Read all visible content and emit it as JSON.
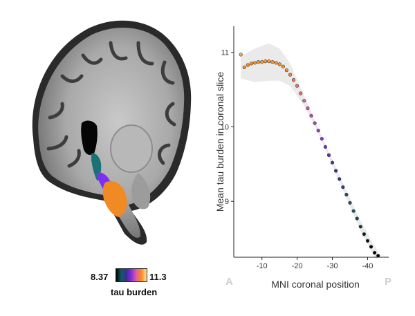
{
  "colorbar": {
    "min_label": "8.37",
    "max_label": "11.3",
    "title": "tau burden",
    "colors": [
      "#000000",
      "#0e5e63",
      "#3a2e8f",
      "#8a2be2",
      "#e0609a",
      "#ff8c1a",
      "#ffe3a6"
    ]
  },
  "brain_overlay_colors": {
    "teal": "#1b7276",
    "purple": "#7b2ff0",
    "orange": "#f08a24"
  },
  "chart_data": {
    "type": "scatter",
    "xlabel": "MNI coronal position",
    "ylabel": "Mean tau burden in coronal slice",
    "x_end_labels": {
      "left": "A",
      "right": "P"
    },
    "xlim": [
      -2,
      -46
    ],
    "ylim": [
      8.25,
      11.35
    ],
    "x_ticks": [
      -10,
      -20,
      -30,
      -40
    ],
    "x_tick_labels": [
      "-10",
      "-20",
      "-30",
      "-40"
    ],
    "y_ticks": [
      9,
      10,
      11
    ],
    "y_tick_labels": [
      "9",
      "10",
      "11"
    ],
    "grid": false,
    "confidence_band": true,
    "points": [
      {
        "x": -4,
        "y": 10.97
      },
      {
        "x": -5,
        "y": 10.8
      },
      {
        "x": -6,
        "y": 10.83
      },
      {
        "x": -7,
        "y": 10.85
      },
      {
        "x": -8,
        "y": 10.86
      },
      {
        "x": -9,
        "y": 10.87
      },
      {
        "x": -10,
        "y": 10.87
      },
      {
        "x": -11,
        "y": 10.88
      },
      {
        "x": -12,
        "y": 10.88
      },
      {
        "x": -13,
        "y": 10.87
      },
      {
        "x": -14,
        "y": 10.86
      },
      {
        "x": -15,
        "y": 10.84
      },
      {
        "x": -16,
        "y": 10.81
      },
      {
        "x": -17,
        "y": 10.76
      },
      {
        "x": -18,
        "y": 10.7
      },
      {
        "x": -19,
        "y": 10.63
      },
      {
        "x": -20,
        "y": 10.55
      },
      {
        "x": -21,
        "y": 10.45
      },
      {
        "x": -22,
        "y": 10.35
      },
      {
        "x": -23,
        "y": 10.25
      },
      {
        "x": -24,
        "y": 10.15
      },
      {
        "x": -25,
        "y": 10.05
      },
      {
        "x": -26,
        "y": 9.95
      },
      {
        "x": -27,
        "y": 9.84
      },
      {
        "x": -28,
        "y": 9.73
      },
      {
        "x": -29,
        "y": 9.62
      },
      {
        "x": -30,
        "y": 9.52
      },
      {
        "x": -31,
        "y": 9.41
      },
      {
        "x": -32,
        "y": 9.3
      },
      {
        "x": -33,
        "y": 9.19
      },
      {
        "x": -34,
        "y": 9.09
      },
      {
        "x": -35,
        "y": 8.98
      },
      {
        "x": -36,
        "y": 8.87
      },
      {
        "x": -37,
        "y": 8.77
      },
      {
        "x": -38,
        "y": 8.66
      },
      {
        "x": -39,
        "y": 8.56
      },
      {
        "x": -40,
        "y": 8.47
      },
      {
        "x": -41,
        "y": 8.39
      },
      {
        "x": -42,
        "y": 8.31
      },
      {
        "x": -43,
        "y": 8.27
      }
    ],
    "band_upper": [
      {
        "x": -4,
        "y": 10.95
      },
      {
        "x": -8,
        "y": 11.05
      },
      {
        "x": -12,
        "y": 11.12
      },
      {
        "x": -15,
        "y": 11.05
      },
      {
        "x": -18,
        "y": 10.85
      },
      {
        "x": -22,
        "y": 10.42
      },
      {
        "x": -26,
        "y": 9.98
      },
      {
        "x": -30,
        "y": 9.56
      },
      {
        "x": -34,
        "y": 9.14
      },
      {
        "x": -38,
        "y": 8.74
      },
      {
        "x": -42,
        "y": 8.4
      },
      {
        "x": -43,
        "y": 8.33
      }
    ],
    "band_lower": [
      {
        "x": -4,
        "y": 10.65
      },
      {
        "x": -8,
        "y": 10.6
      },
      {
        "x": -12,
        "y": 10.62
      },
      {
        "x": -15,
        "y": 10.62
      },
      {
        "x": -18,
        "y": 10.55
      },
      {
        "x": -22,
        "y": 10.28
      },
      {
        "x": -26,
        "y": 9.92
      },
      {
        "x": -30,
        "y": 9.48
      },
      {
        "x": -34,
        "y": 9.04
      },
      {
        "x": -38,
        "y": 8.6
      },
      {
        "x": -42,
        "y": 8.24
      },
      {
        "x": -43,
        "y": 8.22
      }
    ]
  }
}
